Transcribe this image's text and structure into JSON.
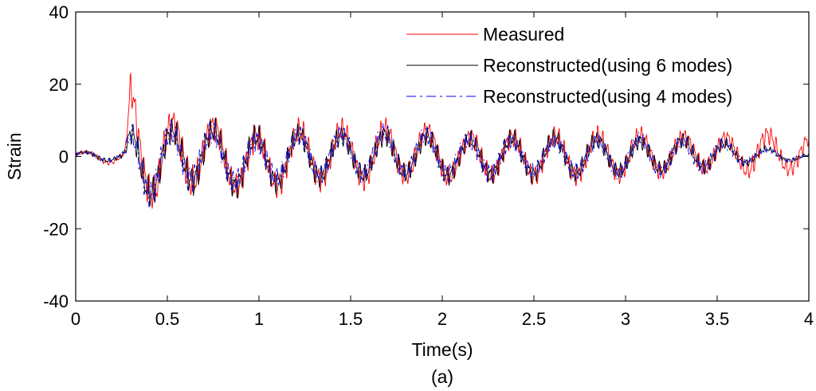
{
  "chart_data": {
    "type": "line",
    "title": "",
    "caption": "(a)",
    "xlabel": "Time(s)",
    "ylabel": "Strain",
    "xlim": [
      0,
      4
    ],
    "ylim": [
      -40,
      40
    ],
    "x_ticks": [
      0,
      0.5,
      1,
      1.5,
      2,
      2.5,
      3,
      3.5,
      4
    ],
    "x_tick_labels": [
      "0",
      "0.5",
      "1",
      "1.5",
      "2",
      "2.5",
      "3",
      "3.5",
      "4"
    ],
    "y_ticks": [
      -40,
      -20,
      0,
      20,
      40
    ],
    "y_tick_labels": [
      "-40",
      "-20",
      "0",
      "20",
      "40"
    ],
    "grid": false,
    "legend_position": "top-right",
    "x_step": 0.1,
    "series": [
      {
        "name": "Measured",
        "color": "#ff0000",
        "style": "solid",
        "envelope_x": [
          0,
          0.1,
          0.2,
          0.25,
          0.27,
          0.3,
          0.35,
          0.4,
          0.45,
          0.5,
          0.6,
          0.7,
          0.8,
          0.9,
          1.0,
          1.1,
          1.2,
          1.3,
          1.4,
          1.5,
          1.6,
          1.7,
          1.8,
          1.9,
          2.0,
          2.1,
          2.2,
          2.3,
          2.4,
          2.5,
          2.6,
          2.7,
          2.8,
          2.9,
          3.0,
          3.1,
          3.2,
          3.3,
          3.4,
          3.5,
          3.6,
          3.7,
          3.8,
          3.9,
          4.0
        ],
        "envelope_max": [
          2,
          2,
          2,
          2,
          3,
          27,
          20,
          17,
          14,
          15,
          20,
          16,
          14,
          12,
          12,
          11,
          13,
          12,
          13,
          12,
          12,
          13,
          12,
          12,
          12,
          9,
          11,
          10,
          10,
          10,
          10,
          10,
          10,
          10,
          10,
          10,
          9,
          9,
          11,
          9,
          9,
          12,
          10,
          9,
          9
        ],
        "envelope_min": [
          -1,
          -2,
          -3,
          -3,
          -3,
          -5,
          -14,
          -17,
          -21,
          -15,
          -16,
          -13,
          -14,
          -15,
          -16,
          -14,
          -11,
          -12,
          -11,
          -10,
          -12,
          -11,
          -10,
          -10,
          -11,
          -10,
          -10,
          -10,
          -10,
          -10,
          -9,
          -10,
          -9,
          -9,
          -9,
          -9,
          -8,
          -8,
          -7,
          -8,
          -7,
          -9,
          -9,
          -7,
          -7
        ]
      },
      {
        "name": "Reconstructed(using 6 modes)",
        "color": "#000000",
        "style": "solid",
        "envelope_x": [
          0,
          0.1,
          0.2,
          0.25,
          0.27,
          0.3,
          0.35,
          0.4,
          0.45,
          0.5,
          0.6,
          0.7,
          0.8,
          0.9,
          1.0,
          1.1,
          1.2,
          1.3,
          1.4,
          1.5,
          1.6,
          1.7,
          1.8,
          1.9,
          2.0,
          2.1,
          2.2,
          2.3,
          2.4,
          2.5,
          2.6,
          2.7,
          2.8,
          2.9,
          3.0,
          3.1,
          3.2,
          3.3,
          3.4,
          3.5,
          3.6,
          3.7,
          3.8,
          3.9,
          4.0
        ],
        "envelope_max": [
          2,
          2,
          2,
          2,
          3,
          12,
          15,
          13,
          12,
          12,
          16,
          14,
          12,
          11,
          11,
          10,
          11,
          11,
          11,
          10,
          10,
          11,
          10,
          10,
          10,
          8,
          9,
          9,
          9,
          9,
          9,
          9,
          9,
          8,
          8,
          8,
          8,
          8,
          8,
          7,
          5,
          4,
          3,
          2,
          1
        ],
        "envelope_min": [
          -1,
          -2,
          -2,
          -3,
          -3,
          -10,
          -15,
          -17,
          -18,
          -13,
          -14,
          -12,
          -13,
          -14,
          -14,
          -12,
          -10,
          -11,
          -10,
          -9,
          -10,
          -10,
          -9,
          -9,
          -10,
          -9,
          -9,
          -9,
          -9,
          -9,
          -8,
          -9,
          -8,
          -8,
          -8,
          -8,
          -7,
          -7,
          -6,
          -6,
          -4,
          -3,
          -2,
          -2,
          -2
        ]
      },
      {
        "name": "Reconstructed(using 4 modes)",
        "color": "#0000ff",
        "style": "dashdot",
        "envelope_x": [
          0,
          0.1,
          0.2,
          0.25,
          0.27,
          0.3,
          0.35,
          0.4,
          0.45,
          0.5,
          0.6,
          0.7,
          0.8,
          0.9,
          1.0,
          1.1,
          1.2,
          1.3,
          1.4,
          1.5,
          1.6,
          1.7,
          1.8,
          1.9,
          2.0,
          2.1,
          2.2,
          2.3,
          2.4,
          2.5,
          2.6,
          2.7,
          2.8,
          2.9,
          3.0,
          3.1,
          3.2,
          3.3,
          3.4,
          3.5,
          3.6,
          3.7,
          3.8,
          3.9,
          4.0
        ],
        "envelope_max": [
          2,
          2,
          2,
          2,
          3,
          11,
          14,
          12,
          11,
          11,
          15,
          13,
          11,
          10,
          10,
          10,
          11,
          10,
          11,
          10,
          10,
          11,
          10,
          10,
          10,
          8,
          9,
          9,
          8,
          8,
          8,
          8,
          8,
          8,
          8,
          8,
          7,
          7,
          8,
          7,
          5,
          4,
          3,
          2,
          1
        ],
        "envelope_min": [
          -1,
          -2,
          -2,
          -3,
          -3,
          -9,
          -14,
          -16,
          -17,
          -12,
          -13,
          -11,
          -12,
          -13,
          -13,
          -11,
          -9,
          -10,
          -9,
          -9,
          -9,
          -9,
          -8,
          -9,
          -9,
          -8,
          -9,
          -9,
          -8,
          -8,
          -8,
          -8,
          -8,
          -8,
          -8,
          -7,
          -7,
          -7,
          -6,
          -6,
          -4,
          -3,
          -2,
          -2,
          -2
        ]
      }
    ]
  }
}
